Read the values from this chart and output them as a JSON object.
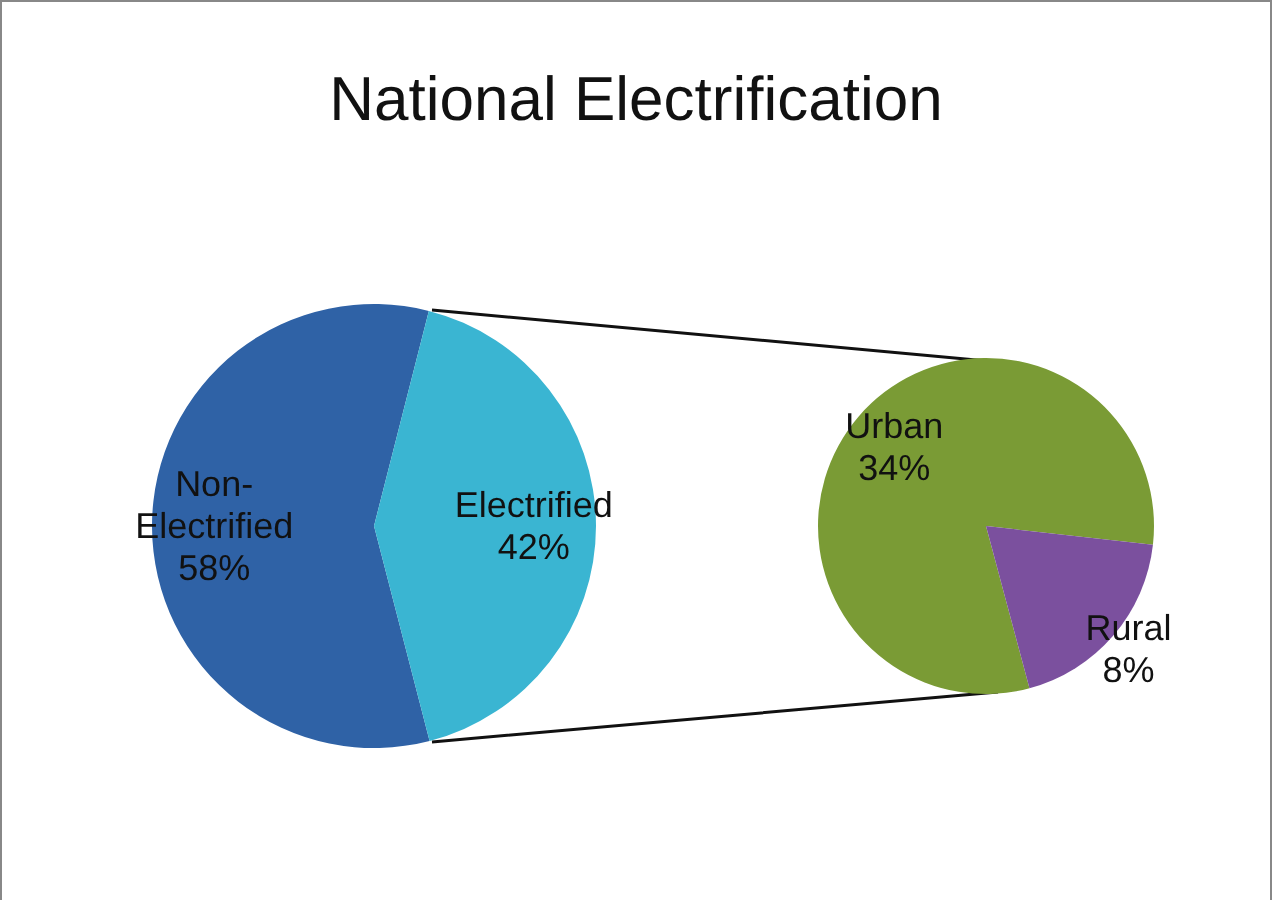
{
  "chart_data": [
    {
      "type": "pie",
      "title": "National Electrification",
      "categories": [
        "Non-Electrified",
        "Electrified"
      ],
      "values": [
        58,
        42
      ],
      "colors": [
        "#2f62a6",
        "#3ab5d2"
      ],
      "value_labels": [
        "58%",
        "42%"
      ]
    },
    {
      "type": "pie",
      "categories": [
        "Urban",
        "Rural"
      ],
      "values": [
        34,
        8
      ],
      "colors": [
        "#7a9b35",
        "#7b509e"
      ],
      "value_labels": [
        "34%",
        "8%"
      ]
    }
  ]
}
